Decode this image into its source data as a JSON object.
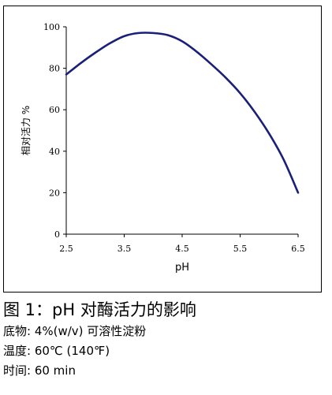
{
  "chart_data": {
    "type": "line",
    "xlabel": "pH",
    "ylabel": "相对活力 %",
    "xlim": [
      2.5,
      6.5
    ],
    "ylim": [
      0,
      100
    ],
    "x_ticks": [
      "2.5",
      "3.5",
      "4.5",
      "5.5",
      "6.5"
    ],
    "y_ticks": [
      "0",
      "20",
      "40",
      "60",
      "80",
      "100"
    ],
    "grid": false,
    "series": [
      {
        "color": "#1a1f7a",
        "x": [
          2.5,
          2.75,
          3.0,
          3.25,
          3.5,
          3.75,
          4.0,
          4.25,
          4.5,
          4.75,
          5.0,
          5.25,
          5.5,
          5.75,
          6.0,
          6.25,
          6.5
        ],
        "y": [
          77,
          82.5,
          87.5,
          92,
          95.5,
          97,
          97,
          96,
          93,
          88,
          82,
          75.5,
          68,
          59,
          48.5,
          36,
          20
        ]
      }
    ]
  },
  "caption": {
    "title": "图 1：pH 对酶活力的影响",
    "substrate": "底物: 4%(w/v)  可溶性淀粉",
    "temperature": "温度: 60℃ (140℉)",
    "time": "时间: 60 min"
  }
}
